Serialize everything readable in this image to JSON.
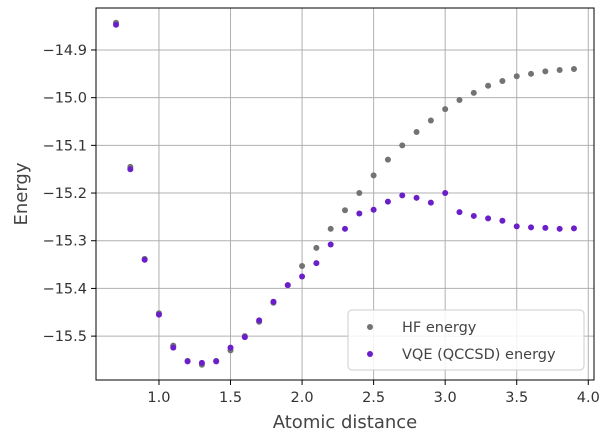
{
  "chart_data": {
    "type": "scatter",
    "title": "",
    "xlabel": "Atomic distance",
    "ylabel": "Energy",
    "xlim": [
      0.56,
      4.04
    ],
    "ylim": [
      -15.592,
      -14.812
    ],
    "grid": true,
    "legend_position": "lower-right",
    "xticks": [
      1.0,
      1.5,
      2.0,
      2.5,
      3.0,
      3.5,
      4.0
    ],
    "xtick_labels": [
      "1.0",
      "1.5",
      "2.0",
      "2.5",
      "3.0",
      "3.5",
      "4.0"
    ],
    "yticks": [
      -14.9,
      -15.0,
      -15.1,
      -15.2,
      -15.3,
      -15.4,
      -15.5
    ],
    "ytick_labels": [
      "−14.9",
      "−15.0",
      "−15.1",
      "−15.2",
      "−15.3",
      "−15.4",
      "−15.5"
    ],
    "x": [
      0.7,
      0.8,
      0.9,
      1.0,
      1.1,
      1.2,
      1.3,
      1.4,
      1.5,
      1.6,
      1.7,
      1.8,
      1.9,
      2.0,
      2.1,
      2.2,
      2.3,
      2.4,
      2.5,
      2.6,
      2.7,
      2.8,
      2.9,
      3.0,
      3.1,
      3.2,
      3.3,
      3.4,
      3.5,
      3.6,
      3.7,
      3.8,
      3.9
    ],
    "series": [
      {
        "name": "HF energy",
        "color": "#737373",
        "values": [
          -14.843,
          -15.145,
          -15.338,
          -15.452,
          -15.52,
          -15.552,
          -15.56,
          -15.552,
          -15.53,
          -15.5,
          -15.47,
          -15.43,
          -15.393,
          -15.353,
          -15.315,
          -15.275,
          -15.236,
          -15.2,
          -15.163,
          -15.13,
          -15.1,
          -15.072,
          -15.048,
          -15.024,
          -15.005,
          -14.99,
          -14.975,
          -14.965,
          -14.955,
          -14.95,
          -14.945,
          -14.942,
          -14.94
        ]
      },
      {
        "name": "VQE (QCCSD) energy",
        "color": "#6a1fc9",
        "values": [
          -14.847,
          -15.15,
          -15.34,
          -15.455,
          -15.524,
          -15.553,
          -15.556,
          -15.553,
          -15.524,
          -15.502,
          -15.467,
          -15.428,
          -15.393,
          -15.375,
          -15.347,
          -15.308,
          -15.275,
          -15.243,
          -15.235,
          -15.218,
          -15.205,
          -15.21,
          -15.22,
          -15.2,
          -15.24,
          -15.248,
          -15.253,
          -15.258,
          -15.27,
          -15.272,
          -15.273,
          -15.275,
          -15.274
        ]
      }
    ]
  }
}
